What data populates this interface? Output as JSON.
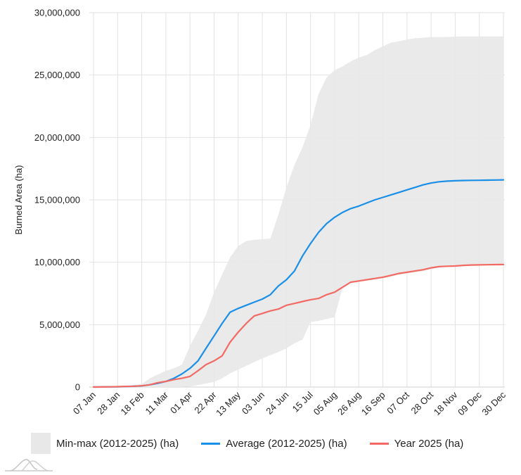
{
  "chart_data": {
    "type": "line",
    "title": "",
    "xlabel": "",
    "ylabel": "Burned Area (ha)",
    "ylim": [
      0,
      30000000
    ],
    "yticks": [
      0,
      5000000,
      10000000,
      15000000,
      20000000,
      25000000,
      30000000
    ],
    "ytick_labels": [
      "0",
      "5,000,000",
      "10,000,000",
      "15,000,000",
      "20,000,000",
      "25,000,000",
      "30,000,000"
    ],
    "xtick_labels": [
      "07 Jan",
      "28 Jan",
      "18 Feb",
      "11 Mar",
      "01 Apr",
      "22 Apr",
      "13 May",
      "03 Jun",
      "24 Jun",
      "15 Jul",
      "05 Aug",
      "26 Aug",
      "16 Sep",
      "07 Oct",
      "28 Oct",
      "18 Nov",
      "09 Dec",
      "30 Dec"
    ],
    "x_interval": "weekly",
    "grid": true,
    "legend_position": "bottom-left",
    "band": {
      "name": "Min-max (2012-2025) (ha)",
      "color": "#e8e8e8",
      "min": [
        0,
        0,
        0,
        0,
        0,
        0,
        0,
        0,
        0,
        0,
        0,
        0,
        50000,
        150000,
        280000,
        400000,
        700000,
        1100000,
        1400000,
        1700000,
        2000000,
        2300000,
        2550000,
        2800000,
        3100000,
        3500000,
        3800000,
        5200000,
        5300000,
        5450000,
        5600000,
        8000000,
        8400000,
        8500000,
        8550000,
        8600000,
        8700000,
        8850000,
        9000000,
        9100000,
        9200000,
        9300000,
        9450000,
        9600000,
        9650000,
        9700000,
        9750000,
        9780000,
        9790000,
        9800000,
        9810000,
        9820000
      ],
      "max": [
        0,
        10000,
        20000,
        40000,
        80000,
        150000,
        250000,
        700000,
        1000000,
        1300000,
        1500000,
        1800000,
        3300000,
        4500000,
        5800000,
        7600000,
        9000000,
        10400000,
        11300000,
        11700000,
        11800000,
        11850000,
        11900000,
        13800000,
        16000000,
        17800000,
        19200000,
        21000000,
        23500000,
        24800000,
        25400000,
        25700000,
        26100000,
        26400000,
        26600000,
        27000000,
        27300000,
        27600000,
        27700000,
        27850000,
        27950000,
        28000000,
        28050000,
        28050000,
        28050000,
        28080000,
        28100000,
        28100000,
        28100000,
        28100000,
        28100000,
        28100000
      ]
    },
    "series": [
      {
        "name": "Average (2012-2025) (ha)",
        "color": "#1a8fe8",
        "values": [
          0,
          5000,
          15000,
          25000,
          40000,
          60000,
          90000,
          180000,
          300000,
          450000,
          700000,
          1050000,
          1500000,
          2100000,
          3100000,
          4100000,
          5100000,
          6000000,
          6300000,
          6550000,
          6800000,
          7050000,
          7400000,
          8100000,
          8600000,
          9300000,
          10500000,
          11500000,
          12400000,
          13100000,
          13600000,
          14000000,
          14300000,
          14500000,
          14750000,
          15000000,
          15200000,
          15400000,
          15600000,
          15800000,
          16000000,
          16200000,
          16350000,
          16450000,
          16500000,
          16530000,
          16550000,
          16560000,
          16570000,
          16580000,
          16590000,
          16600000
        ]
      },
      {
        "name": "Year 2025 (ha)",
        "color": "#f26a63",
        "values": [
          0,
          5000,
          15000,
          30000,
          50000,
          70000,
          100000,
          180000,
          350000,
          450000,
          600000,
          700000,
          850000,
          1300000,
          1800000,
          2100000,
          2500000,
          3600000,
          4400000,
          5100000,
          5700000,
          5900000,
          6100000,
          6250000,
          6550000,
          6700000,
          6850000,
          7000000,
          7100000,
          7400000,
          7600000,
          8000000,
          8400000,
          8500000,
          8600000,
          8700000,
          8800000,
          8950000,
          9100000,
          9200000,
          9300000,
          9400000,
          9550000,
          9650000,
          9680000,
          9700000,
          9750000,
          9780000,
          9790000,
          9800000,
          9810000,
          9820000
        ]
      }
    ]
  },
  "legend": {
    "items": [
      {
        "label": "Min-max (2012-2025) (ha)",
        "color": "#e8e8e8",
        "kind": "area"
      },
      {
        "label": "Average (2012-2025) (ha)",
        "color": "#1a8fe8",
        "kind": "line"
      },
      {
        "label": "Year 2025 (ha)",
        "color": "#f26a63",
        "kind": "line"
      }
    ]
  },
  "logo": {
    "icon": "mountain-wave-logo-icon"
  }
}
